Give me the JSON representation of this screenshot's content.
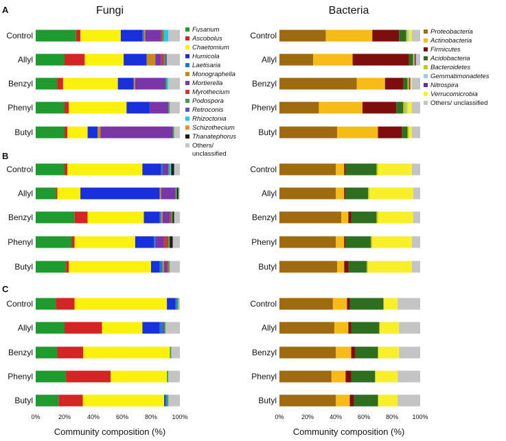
{
  "panel_titles": {
    "fungi": "Fungi",
    "bacteria": "Bacteria"
  },
  "panel_letters": [
    "A",
    "B",
    "C"
  ],
  "xlabel": "Community composition (%)",
  "xticks": [
    "0%",
    "20%",
    "40%",
    "60%",
    "80%",
    "100%"
  ],
  "treatments": [
    "Control",
    "Allyl",
    "Benzyl",
    "Phenyl",
    "Butyl"
  ],
  "fungi_legend": [
    {
      "name": "Fusarium",
      "color": "#1f9a2f"
    },
    {
      "name": "Ascobolus",
      "color": "#d42424"
    },
    {
      "name": "Chaetomium",
      "color": "#fbf10d"
    },
    {
      "name": "Humicola",
      "color": "#1730dc"
    },
    {
      "name": "Laetisaria",
      "color": "#1e78c8"
    },
    {
      "name": "Monographella",
      "color": "#c68a1c"
    },
    {
      "name": "Mortierella",
      "color": "#7a35a8"
    },
    {
      "name": "Myrothecium",
      "color": "#c23b3b"
    },
    {
      "name": "Podospora",
      "color": "#3aa44a"
    },
    {
      "name": "Retroconis",
      "color": "#6b4fb8"
    },
    {
      "name": "Rhizoctonia",
      "color": "#28c8e8"
    },
    {
      "name": "Schizothecium",
      "color": "#e6903a"
    },
    {
      "name": "Thanatephorus",
      "color": "#1a1a1a"
    }
  ],
  "fungi_other_label": [
    "Others/",
    "unclassified"
  ],
  "bacteria_legend": [
    {
      "name": "Proteobacteria",
      "color": "#a06a10"
    },
    {
      "name": "Actinobacteria",
      "color": "#f6bb17"
    },
    {
      "name": "Firmicutes",
      "color": "#7e0d0d"
    },
    {
      "name": "Acidobacteria",
      "color": "#2d6e1f"
    },
    {
      "name": "Bacteroidetes",
      "color": "#c7c81a"
    },
    {
      "name": "Gemmatimonadetes",
      "color": "#9fcbe4"
    },
    {
      "name": "Nitrospira",
      "color": "#7228a0"
    },
    {
      "name": "Verrucomicrobia",
      "color": "#f6ef2a"
    }
  ],
  "bacteria_other_label": "Others/ unclassified",
  "others_color": "#c4c4c4",
  "chart_data": [
    {
      "type": "bar",
      "orientation": "horizontal",
      "stacked": true,
      "title": "Fungi",
      "panel": "A",
      "xlabel": "Community composition (%)",
      "xlim": [
        0,
        100
      ],
      "categories": [
        "Control",
        "Allyl",
        "Benzyl",
        "Phenyl",
        "Butyl"
      ],
      "series": [
        {
          "name": "Fusarium",
          "values": [
            28,
            20,
            15,
            20,
            20
          ]
        },
        {
          "name": "Ascobolus",
          "values": [
            3,
            14,
            4,
            3,
            2
          ]
        },
        {
          "name": "Chaetomium",
          "values": [
            28,
            27,
            38,
            40,
            14
          ]
        },
        {
          "name": "Humicola",
          "values": [
            15,
            16,
            11,
            16,
            7
          ]
        },
        {
          "name": "Laetisaria",
          "values": [
            1,
            0,
            0,
            0,
            0
          ]
        },
        {
          "name": "Monographella",
          "values": [
            1,
            6,
            1,
            0,
            2
          ]
        },
        {
          "name": "Mortierella",
          "values": [
            11,
            4,
            21,
            13,
            50
          ]
        },
        {
          "name": "Myrothecium",
          "values": [
            1,
            2,
            0,
            0,
            0
          ]
        },
        {
          "name": "Podospora",
          "values": [
            1,
            1,
            1,
            1,
            1
          ]
        },
        {
          "name": "Retroconis",
          "values": [
            0,
            1,
            0,
            0,
            0
          ]
        },
        {
          "name": "Rhizoctonia",
          "values": [
            3,
            0,
            1,
            0,
            0
          ]
        },
        {
          "name": "Schizothecium",
          "values": [
            0,
            0,
            0,
            0,
            0
          ]
        },
        {
          "name": "Thanatephorus",
          "values": [
            0,
            0,
            0,
            0,
            0
          ]
        },
        {
          "name": "Others/ unclassified",
          "values": [
            8,
            9,
            8,
            7,
            4
          ]
        }
      ]
    },
    {
      "type": "bar",
      "orientation": "horizontal",
      "stacked": true,
      "title": "Bacteria",
      "panel": "A",
      "xlabel": "Community composition (%)",
      "xlim": [
        0,
        100
      ],
      "categories": [
        "Control",
        "Allyl",
        "Benzyl",
        "Phenyl",
        "Butyl"
      ],
      "series": [
        {
          "name": "Proteobacteria",
          "values": [
            33,
            24,
            55,
            28,
            41
          ]
        },
        {
          "name": "Actinobacteria",
          "values": [
            33,
            28,
            20,
            31,
            29
          ]
        },
        {
          "name": "Firmicutes",
          "values": [
            19,
            40,
            13,
            24,
            17
          ]
        },
        {
          "name": "Acidobacteria",
          "values": [
            5,
            3,
            3,
            5,
            4
          ]
        },
        {
          "name": "Bacteroidetes",
          "values": [
            1,
            1,
            1,
            2,
            1
          ]
        },
        {
          "name": "Gemmatimonadetes",
          "values": [
            1,
            0,
            0,
            1,
            0
          ]
        },
        {
          "name": "Nitrospira",
          "values": [
            0,
            1,
            1,
            0,
            0
          ]
        },
        {
          "name": "Verrucomicrobia",
          "values": [
            2,
            0,
            1,
            3,
            2
          ]
        },
        {
          "name": "Others/ unclassified",
          "values": [
            6,
            3,
            6,
            6,
            6
          ]
        }
      ]
    },
    {
      "type": "bar",
      "orientation": "horizontal",
      "stacked": true,
      "title": "Fungi",
      "panel": "B",
      "xlabel": "Community composition (%)",
      "xlim": [
        0,
        100
      ],
      "categories": [
        "Control",
        "Allyl",
        "Benzyl",
        "Phenyl",
        "Butyl"
      ],
      "series": [
        {
          "name": "Fusarium",
          "values": [
            20,
            14,
            27,
            25,
            21
          ]
        },
        {
          "name": "Ascobolus",
          "values": [
            2,
            1,
            9,
            2,
            2
          ]
        },
        {
          "name": "Chaetomium",
          "values": [
            52,
            16,
            39,
            42,
            57
          ]
        },
        {
          "name": "Humicola",
          "values": [
            13,
            55,
            11,
            13,
            6
          ]
        },
        {
          "name": "Laetisaria",
          "values": [
            1,
            0,
            1,
            1,
            2
          ]
        },
        {
          "name": "Monographella",
          "values": [
            0,
            1,
            1,
            0,
            1
          ]
        },
        {
          "name": "Mortierella",
          "values": [
            4,
            10,
            5,
            6,
            2
          ]
        },
        {
          "name": "Myrothecium",
          "values": [
            0,
            0,
            1,
            3,
            1
          ]
        },
        {
          "name": "Podospora",
          "values": [
            1,
            1,
            1,
            1,
            1
          ]
        },
        {
          "name": "Retroconis",
          "values": [
            0,
            0,
            0,
            0,
            0
          ]
        },
        {
          "name": "Rhizoctonia",
          "values": [
            1,
            0,
            0,
            0,
            0
          ]
        },
        {
          "name": "Schizothecium",
          "values": [
            0,
            0,
            0,
            0,
            0
          ]
        },
        {
          "name": "Thanatephorus",
          "values": [
            2,
            1,
            1,
            2,
            0
          ]
        },
        {
          "name": "Others/ unclassified",
          "values": [
            4,
            1,
            4,
            5,
            7
          ]
        }
      ]
    },
    {
      "type": "bar",
      "orientation": "horizontal",
      "stacked": true,
      "title": "Bacteria",
      "panel": "B",
      "xlabel": "Community composition (%)",
      "xlim": [
        0,
        100
      ],
      "categories": [
        "Control",
        "Allyl",
        "Benzyl",
        "Phenyl",
        "Butyl"
      ],
      "series": [
        {
          "name": "Proteobacteria",
          "values": [
            40,
            40,
            44,
            40,
            41
          ]
        },
        {
          "name": "Actinobacteria",
          "values": [
            6,
            6,
            5,
            6,
            5
          ]
        },
        {
          "name": "Firmicutes",
          "values": [
            1,
            1,
            2,
            1,
            3
          ]
        },
        {
          "name": "Acidobacteria",
          "values": [
            22,
            16,
            18,
            18,
            13
          ]
        },
        {
          "name": "Bacteroidetes",
          "values": [
            1,
            1,
            1,
            1,
            1
          ]
        },
        {
          "name": "Gemmatimonadetes",
          "values": [
            0,
            0,
            0,
            0,
            0
          ]
        },
        {
          "name": "Nitrospira",
          "values": [
            0,
            0,
            0,
            0,
            0
          ]
        },
        {
          "name": "Verrucomicrobia",
          "values": [
            24,
            31,
            25,
            28,
            31
          ]
        },
        {
          "name": "Others/ unclassified",
          "values": [
            6,
            5,
            5,
            6,
            6
          ]
        }
      ]
    },
    {
      "type": "bar",
      "orientation": "horizontal",
      "stacked": true,
      "title": "Fungi",
      "panel": "C",
      "xlabel": "Community composition (%)",
      "xlim": [
        0,
        100
      ],
      "categories": [
        "Control",
        "Allyl",
        "Benzyl",
        "Phenyl",
        "Butyl"
      ],
      "series": [
        {
          "name": "Fusarium",
          "values": [
            14,
            20,
            15,
            21,
            16
          ]
        },
        {
          "name": "Ascobolus",
          "values": [
            13,
            26,
            18,
            31,
            17
          ]
        },
        {
          "name": "Chaetomium",
          "values": [
            64,
            28,
            60,
            39,
            57
          ]
        },
        {
          "name": "Humicola",
          "values": [
            6,
            12,
            0,
            0,
            1
          ]
        },
        {
          "name": "Laetisaria",
          "values": [
            1,
            2,
            0,
            0,
            1
          ]
        },
        {
          "name": "Monographella",
          "values": [
            0,
            0,
            0,
            0,
            0
          ]
        },
        {
          "name": "Mortierella",
          "values": [
            0,
            1,
            0,
            0,
            0
          ]
        },
        {
          "name": "Myrothecium",
          "values": [
            0,
            0,
            0,
            0,
            0
          ]
        },
        {
          "name": "Podospora",
          "values": [
            1,
            1,
            1,
            1,
            1
          ]
        },
        {
          "name": "Retroconis",
          "values": [
            0,
            0,
            0,
            0,
            0
          ]
        },
        {
          "name": "Rhizoctonia",
          "values": [
            0,
            0,
            0,
            0,
            0
          ]
        },
        {
          "name": "Schizothecium",
          "values": [
            0,
            0,
            0,
            0,
            0
          ]
        },
        {
          "name": "Thanatephorus",
          "values": [
            0,
            0,
            0,
            0,
            0
          ]
        },
        {
          "name": "Others/ unclassified",
          "values": [
            1,
            10,
            6,
            8,
            8
          ]
        }
      ]
    },
    {
      "type": "bar",
      "orientation": "horizontal",
      "stacked": true,
      "title": "Bacteria",
      "panel": "C",
      "xlabel": "Community composition (%)",
      "xlim": [
        0,
        100
      ],
      "categories": [
        "Control",
        "Allyl",
        "Benzyl",
        "Phenyl",
        "Butyl"
      ],
      "series": [
        {
          "name": "Proteobacteria",
          "values": [
            38,
            39,
            40,
            37,
            40
          ]
        },
        {
          "name": "Actinobacteria",
          "values": [
            10,
            10,
            11,
            10,
            10
          ]
        },
        {
          "name": "Firmicutes",
          "values": [
            2,
            2,
            3,
            4,
            3
          ]
        },
        {
          "name": "Acidobacteria",
          "values": [
            24,
            20,
            16,
            17,
            17
          ]
        },
        {
          "name": "Bacteroidetes",
          "values": [
            0,
            0,
            0,
            0,
            0
          ]
        },
        {
          "name": "Gemmatimonadetes",
          "values": [
            0,
            0,
            0,
            0,
            0
          ]
        },
        {
          "name": "Nitrospira",
          "values": [
            0,
            0,
            0,
            0,
            0
          ]
        },
        {
          "name": "Verrucomicrobia",
          "values": [
            10,
            14,
            15,
            16,
            14
          ]
        },
        {
          "name": "Others/ unclassified",
          "values": [
            16,
            15,
            15,
            16,
            16
          ]
        }
      ]
    }
  ]
}
